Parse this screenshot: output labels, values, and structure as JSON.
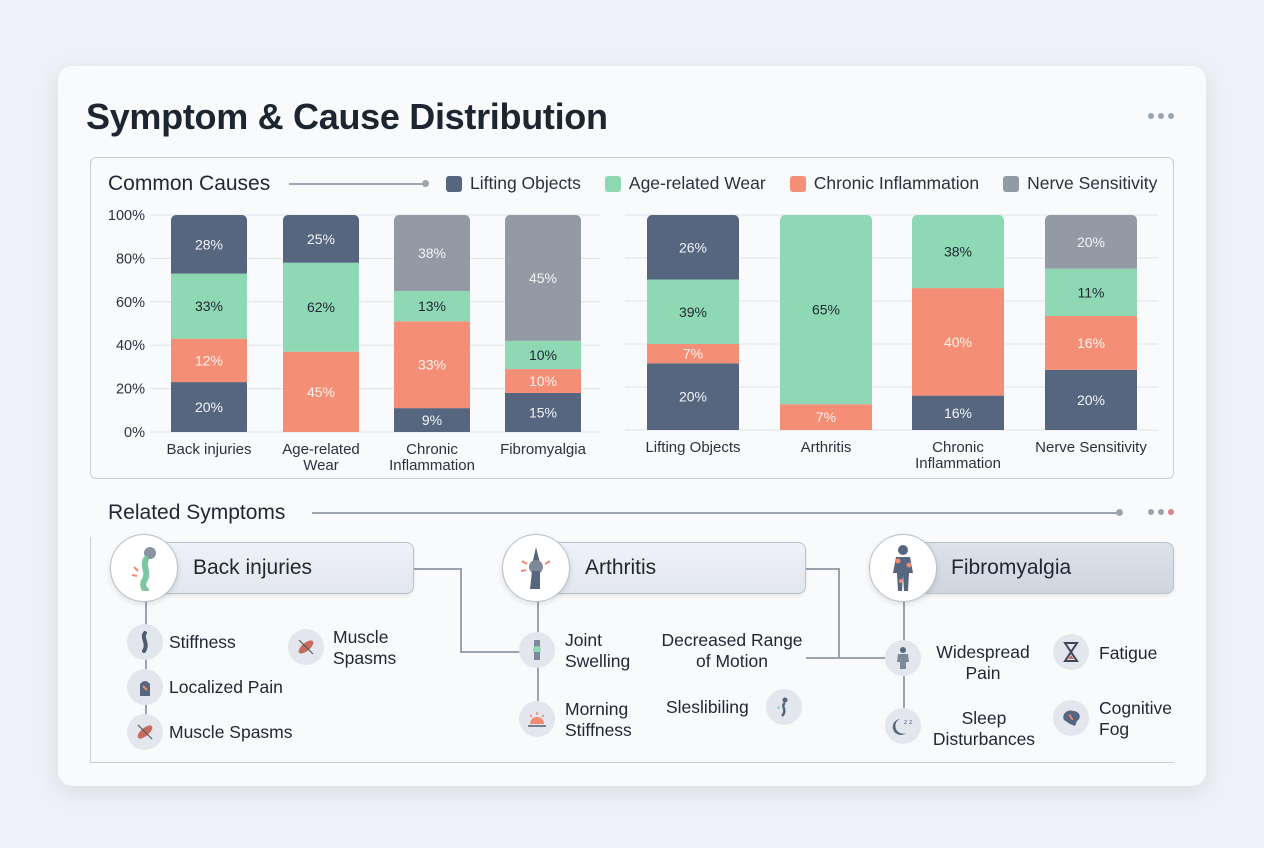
{
  "title": "Symptom & Cause Distribution",
  "causes_title": "Common Causes",
  "legend": [
    {
      "label": "Lifting Objects",
      "color": "#56667f"
    },
    {
      "label": "Age-related Wear",
      "color": "#8ed9b4"
    },
    {
      "label": "Chronic Inflammation",
      "color": "#f58e76"
    },
    {
      "label": "Nerve Sensitivity",
      "color": "#949aa5"
    }
  ],
  "chart_data": [
    {
      "type": "bar",
      "stacked": true,
      "ylim": [
        0,
        100
      ],
      "yticks": [
        "0%",
        "20%",
        "40%",
        "60%",
        "80%",
        "100%"
      ],
      "categories": [
        [
          "Back injuries"
        ],
        [
          "Age-related",
          "Wear"
        ],
        [
          "Chronic",
          "Inflammation"
        ],
        [
          "Fibromyalgia"
        ]
      ],
      "bars": [
        [
          {
            "series": "Lifting Objects",
            "value": 23,
            "label": "20%"
          },
          {
            "series": "Chronic Inflammation",
            "value": 20,
            "label": "12%"
          },
          {
            "series": "Age-related Wear",
            "value": 30,
            "label": "33%"
          },
          {
            "series": "Lifting Objects",
            "value": 27,
            "label": "28%"
          }
        ],
        [
          {
            "series": "Chronic Inflammation",
            "value": 37,
            "label": "45%"
          },
          {
            "series": "Age-related Wear",
            "value": 41,
            "label": "62%"
          },
          {
            "series": "Lifting Objects",
            "value": 22,
            "label": "25%"
          }
        ],
        [
          {
            "series": "Lifting Objects",
            "value": 11,
            "label": "9%"
          },
          {
            "series": "Chronic Inflammation",
            "value": 40,
            "label": "33%"
          },
          {
            "series": "Age-related Wear",
            "value": 14,
            "label": "13%"
          },
          {
            "series": "Nerve Sensitivity",
            "value": 35,
            "label": "38%"
          }
        ],
        [
          {
            "series": "Lifting Objects",
            "value": 18,
            "label": "15%"
          },
          {
            "series": "Chronic Inflammation",
            "value": 11,
            "label": "10%"
          },
          {
            "series": "Age-related Wear",
            "value": 13,
            "label": "10%"
          },
          {
            "series": "Nerve Sensitivity",
            "value": 58,
            "label": "45%"
          }
        ]
      ]
    },
    {
      "type": "bar",
      "stacked": true,
      "ylim": [
        0,
        100
      ],
      "categories": [
        [
          "Lifting Objects"
        ],
        [
          "Arthritis"
        ],
        [
          "Chronic",
          "Inflammation"
        ],
        [
          "Nerve Sensitivity"
        ]
      ],
      "bars": [
        [
          {
            "series": "Lifting Objects",
            "value": 31,
            "label": "20%"
          },
          {
            "series": "Chronic Inflammation",
            "value": 9,
            "label": "7%"
          },
          {
            "series": "Age-related Wear",
            "value": 30,
            "label": "39%"
          },
          {
            "series": "Lifting Objects",
            "value": 30,
            "label": "26%"
          }
        ],
        [
          {
            "series": "Chronic Inflammation",
            "value": 12,
            "label": "7%"
          },
          {
            "series": "Age-related Wear",
            "value": 88,
            "label": "65%"
          }
        ],
        [
          {
            "series": "Lifting Objects",
            "value": 16,
            "label": "16%"
          },
          {
            "series": "Chronic Inflammation",
            "value": 50,
            "label": "40%"
          },
          {
            "series": "Age-related Wear",
            "value": 34,
            "label": "38%"
          }
        ],
        [
          {
            "series": "Lifting Objects",
            "value": 28,
            "label": "20%"
          },
          {
            "series": "Chronic Inflammation",
            "value": 25,
            "label": "16%"
          },
          {
            "series": "Age-related Wear",
            "value": 22,
            "label": "11%"
          },
          {
            "series": "Nerve Sensitivity",
            "value": 25,
            "label": "20%"
          }
        ]
      ]
    }
  ],
  "symptoms": {
    "title": "Related Symptoms",
    "groups": [
      {
        "label": "Back injuries",
        "icon": "spine-icon",
        "items": [
          {
            "label": "Stiffness",
            "icon": "spine-icon"
          },
          {
            "label": "Localized Pain",
            "icon": "back-icon"
          },
          {
            "label": "Muscle Spasms",
            "icon": "muscle-icon"
          },
          {
            "label": "Muscle\nSpasms",
            "icon": "muscle-icon"
          }
        ]
      },
      {
        "label": "Arthritis",
        "icon": "knee-joint-icon",
        "items": [
          {
            "label": "Joint\nSwelling",
            "icon": "joint-icon"
          },
          {
            "label": "Morning\nStiffness",
            "icon": "sunrise-icon"
          },
          {
            "label": "Decreased Range\nof Motion",
            "icon": ""
          },
          {
            "label": "Sleslibiling",
            "icon": "flexibility-icon"
          }
        ]
      },
      {
        "label": "Fibromyalgia",
        "icon": "body-pain-icon",
        "items": [
          {
            "label": "Widespread\nPain",
            "icon": "body-icon"
          },
          {
            "label": "Fatigue",
            "icon": "hourglass-icon"
          },
          {
            "label": "Sleep\nDisturbances",
            "icon": "moon-icon"
          },
          {
            "label": "Cognitive\nFog",
            "icon": "brain-icon"
          }
        ]
      }
    ]
  }
}
